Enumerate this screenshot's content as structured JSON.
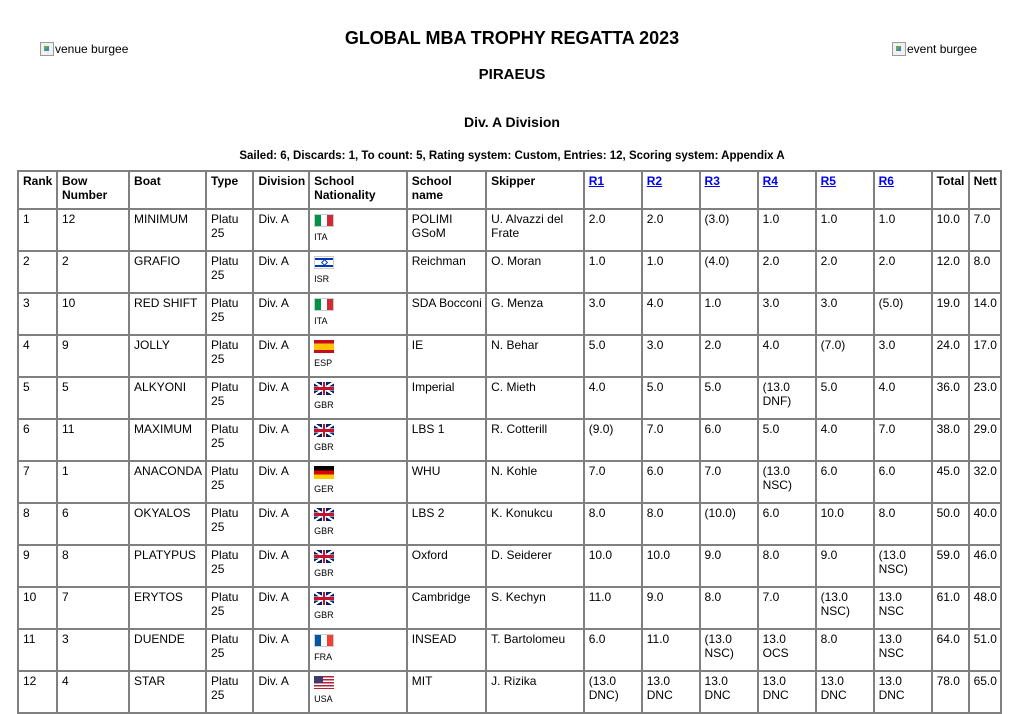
{
  "header": {
    "venue_burgee_alt": "venue burgee",
    "event_burgee_alt": "event burgee",
    "title": "GLOBAL MBA TROPHY REGATTA 2023",
    "subtitle": "PIRAEUS",
    "division": "Div. A Division",
    "summary": "Sailed: 6, Discards: 1, To count: 5, Rating system: Custom, Entries: 12, Scoring system: Appendix A"
  },
  "table": {
    "headers": {
      "rank": "Rank",
      "bow": "Bow Number",
      "boat": "Boat",
      "type": "Type",
      "division": "Division",
      "nationality": "School Nationality",
      "school": "School name",
      "skipper": "Skipper",
      "r1": "R1",
      "r2": "R2",
      "r3": "R3",
      "r4": "R4",
      "r5": "R5",
      "r6": "R6",
      "total": "Total",
      "nett": "Nett"
    },
    "rows": [
      {
        "rank": "1",
        "bow": "12",
        "boat": "MINIMUM",
        "type": "Platu 25",
        "division": "Div. A",
        "flag": "ita",
        "nat": "ITA",
        "school": "POLIMI GSoM",
        "skipper": "U. Alvazzi del Frate",
        "r": [
          "2.0",
          "2.0",
          "(3.0)",
          "1.0",
          "1.0",
          "1.0"
        ],
        "total": "10.0",
        "nett": "7.0"
      },
      {
        "rank": "2",
        "bow": "2",
        "boat": "GRAFIO",
        "type": "Platu 25",
        "division": "Div. A",
        "flag": "isr",
        "nat": "ISR",
        "school": "Reichman",
        "skipper": "O. Moran",
        "r": [
          "1.0",
          "1.0",
          "(4.0)",
          "2.0",
          "2.0",
          "2.0"
        ],
        "total": "12.0",
        "nett": "8.0"
      },
      {
        "rank": "3",
        "bow": "10",
        "boat": "RED SHIFT",
        "type": "Platu 25",
        "division": "Div. A",
        "flag": "ita",
        "nat": "ITA",
        "school": "SDA Bocconi",
        "skipper": "G. Menza",
        "r": [
          "3.0",
          "4.0",
          "1.0",
          "3.0",
          "3.0",
          "(5.0)"
        ],
        "total": "19.0",
        "nett": "14.0"
      },
      {
        "rank": "4",
        "bow": "9",
        "boat": "JOLLY",
        "type": "Platu 25",
        "division": "Div. A",
        "flag": "esp",
        "nat": "ESP",
        "school": "IE",
        "skipper": "N. Behar",
        "r": [
          "5.0",
          "3.0",
          "2.0",
          "4.0",
          "(7.0)",
          "3.0"
        ],
        "total": "24.0",
        "nett": "17.0"
      },
      {
        "rank": "5",
        "bow": "5",
        "boat": "ALKYONI",
        "type": "Platu 25",
        "division": "Div. A",
        "flag": "gbr",
        "nat": "GBR",
        "school": "Imperial",
        "skipper": "C. Mieth",
        "r": [
          "4.0",
          "5.0",
          "5.0",
          "(13.0 DNF)",
          "5.0",
          "4.0"
        ],
        "total": "36.0",
        "nett": "23.0"
      },
      {
        "rank": "6",
        "bow": "11",
        "boat": "MAXIMUM",
        "type": "Platu 25",
        "division": "Div. A",
        "flag": "gbr",
        "nat": "GBR",
        "school": "LBS 1",
        "skipper": "R. Cotterill",
        "r": [
          "(9.0)",
          "7.0",
          "6.0",
          "5.0",
          "4.0",
          "7.0"
        ],
        "total": "38.0",
        "nett": "29.0"
      },
      {
        "rank": "7",
        "bow": "1",
        "boat": "ANACONDA",
        "type": "Platu 25",
        "division": "Div. A",
        "flag": "ger",
        "nat": "GER",
        "school": "WHU",
        "skipper": "N. Kohle",
        "r": [
          "7.0",
          "6.0",
          "7.0",
          "(13.0 NSC)",
          "6.0",
          "6.0"
        ],
        "total": "45.0",
        "nett": "32.0"
      },
      {
        "rank": "8",
        "bow": "6",
        "boat": "OKYALOS",
        "type": "Platu 25",
        "division": "Div. A",
        "flag": "gbr",
        "nat": "GBR",
        "school": "LBS 2",
        "skipper": "K. Konukcu",
        "r": [
          "8.0",
          "8.0",
          "(10.0)",
          "6.0",
          "10.0",
          "8.0"
        ],
        "total": "50.0",
        "nett": "40.0"
      },
      {
        "rank": "9",
        "bow": "8",
        "boat": "PLATYPUS",
        "type": "Platu 25",
        "division": "Div. A",
        "flag": "gbr",
        "nat": "GBR",
        "school": "Oxford",
        "skipper": "D. Seiderer",
        "r": [
          "10.0",
          "10.0",
          "9.0",
          "8.0",
          "9.0",
          "(13.0 NSC)"
        ],
        "total": "59.0",
        "nett": "46.0"
      },
      {
        "rank": "10",
        "bow": "7",
        "boat": "ERYTOS",
        "type": "Platu 25",
        "division": "Div. A",
        "flag": "gbr",
        "nat": "GBR",
        "school": "Cambridge",
        "skipper": "S. Kechyn",
        "r": [
          "11.0",
          "9.0",
          "8.0",
          "7.0",
          "(13.0 NSC)",
          "13.0 NSC"
        ],
        "total": "61.0",
        "nett": "48.0"
      },
      {
        "rank": "11",
        "bow": "3",
        "boat": "DUENDE",
        "type": "Platu 25",
        "division": "Div. A",
        "flag": "fra",
        "nat": "FRA",
        "school": "INSEAD",
        "skipper": "T. Bartolomeu",
        "r": [
          "6.0",
          "11.0",
          "(13.0 NSC)",
          "13.0 OCS",
          "8.0",
          "13.0 NSC"
        ],
        "total": "64.0",
        "nett": "51.0"
      },
      {
        "rank": "12",
        "bow": "4",
        "boat": "STAR",
        "type": "Platu 25",
        "division": "Div. A",
        "flag": "usa",
        "nat": "USA",
        "school": "MIT",
        "skipper": "J. Rizika",
        "r": [
          "(13.0 DNC)",
          "13.0 DNC",
          "13.0 DNC",
          "13.0 DNC",
          "13.0 DNC",
          "13.0 DNC"
        ],
        "total": "78.0",
        "nett": "65.0"
      }
    ]
  }
}
